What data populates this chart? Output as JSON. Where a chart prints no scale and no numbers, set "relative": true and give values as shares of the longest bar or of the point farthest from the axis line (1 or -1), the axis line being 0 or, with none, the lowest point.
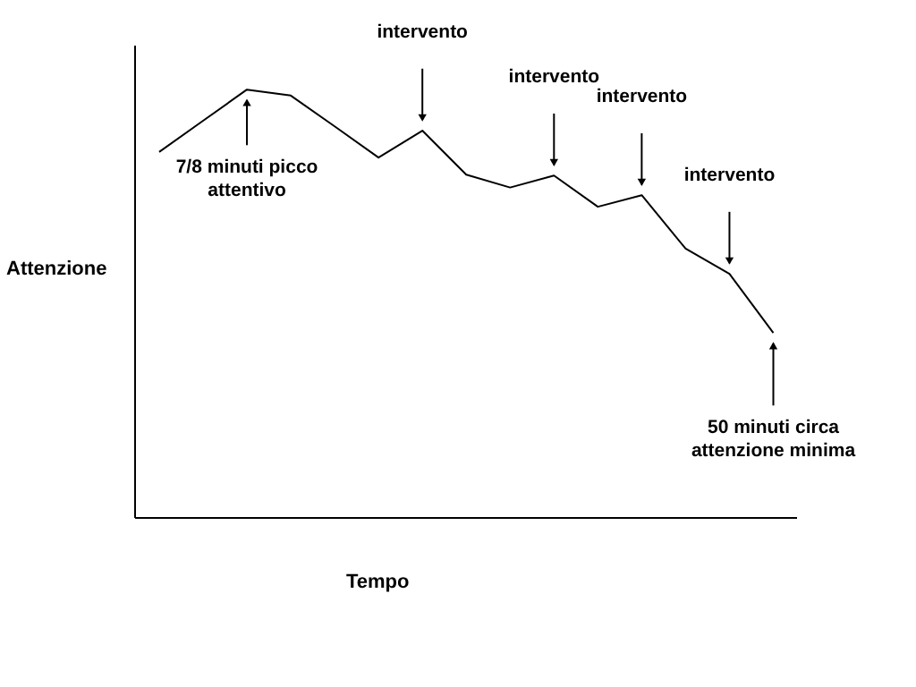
{
  "chart_data": {
    "type": "line",
    "relative": true,
    "xlabel": "Tempo",
    "ylabel": "Attenzione",
    "color": "#000000",
    "marker": "none",
    "categories": [
      null,
      null,
      null,
      null,
      null,
      null,
      null,
      null,
      null,
      null,
      null,
      null,
      null,
      null,
      null
    ],
    "values": [
      0.854,
      0.927,
      1,
      0.986,
      0.914,
      0.841,
      0.904,
      0.801,
      0.771,
      0.799,
      0.726,
      0.753,
      0.628,
      0.569,
      0.431
    ],
    "annotations": [
      "intervento",
      "intervento",
      "intervento",
      "intervento",
      "7/8 minuti picco\nattentivo",
      "50 minuti circa\nattenzione minima"
    ]
  }
}
